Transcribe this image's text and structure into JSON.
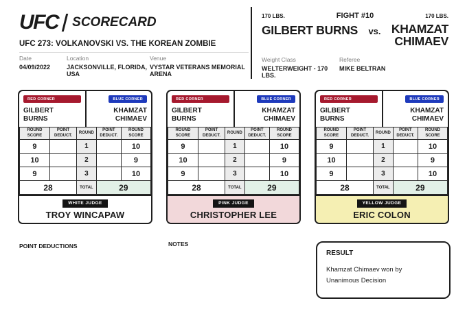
{
  "brand": {
    "ufc": "UFC",
    "scorecard": "SCORECARD"
  },
  "event": {
    "title": "UFC 273: VOLKANOVSKI VS. THE KOREAN ZOMBIE",
    "date_label": "Date",
    "date": "04/09/2022",
    "location_label": "Location",
    "location": "JACKSONVILLE, FLORIDA, USA",
    "venue_label": "Venue",
    "venue": "VYSTAR VETERANS MEMORIAL ARENA"
  },
  "fight": {
    "number": "FIGHT #10",
    "red_weight": "170 LBS.",
    "blue_weight": "170 LBS.",
    "red_fighter": "GILBERT BURNS",
    "vs": "vs.",
    "blue_fighter_first": "KHAMZAT",
    "blue_fighter_last": "CHIMAEV",
    "weight_class_label": "Weight Class",
    "weight_class": "WELTERWEIGHT - 170 LBS.",
    "referee_label": "Referee",
    "referee": "MIKE BELTRAN"
  },
  "card": {
    "red_corner": "RED CORNER",
    "blue_corner": "BLUE CORNER",
    "red_first": "GILBERT",
    "red_last": "BURNS",
    "blue_first": "KHAMZAT",
    "blue_last": "CHIMAEV",
    "headers": {
      "round_score": "ROUND SCORE",
      "point_deduct": "POINT DEDUCT.",
      "round": "ROUND"
    },
    "total_label": "TOTAL"
  },
  "judges": [
    {
      "badge": "WHITE JUDGE",
      "name": "TROY WINCAPAW",
      "judge_bg": "#ffffff",
      "rounds": [
        {
          "red_score": "9",
          "red_deduct": "",
          "round": "1",
          "blue_deduct": "",
          "blue_score": "10"
        },
        {
          "red_score": "10",
          "red_deduct": "",
          "round": "2",
          "blue_deduct": "",
          "blue_score": "9"
        },
        {
          "red_score": "9",
          "red_deduct": "",
          "round": "3",
          "blue_deduct": "",
          "blue_score": "10"
        }
      ],
      "red_total": "28",
      "blue_total": "29"
    },
    {
      "badge": "PINK JUDGE",
      "name": "CHRISTOPHER LEE",
      "judge_bg": "#f2d8da",
      "rounds": [
        {
          "red_score": "9",
          "red_deduct": "",
          "round": "1",
          "blue_deduct": "",
          "blue_score": "10"
        },
        {
          "red_score": "10",
          "red_deduct": "",
          "round": "2",
          "blue_deduct": "",
          "blue_score": "9"
        },
        {
          "red_score": "9",
          "red_deduct": "",
          "round": "3",
          "blue_deduct": "",
          "blue_score": "10"
        }
      ],
      "red_total": "28",
      "blue_total": "29"
    },
    {
      "badge": "YELLOW JUDGE",
      "name": "ERIC COLON",
      "judge_bg": "#f5efb3",
      "rounds": [
        {
          "red_score": "9",
          "red_deduct": "",
          "round": "1",
          "blue_deduct": "",
          "blue_score": "10"
        },
        {
          "red_score": "10",
          "red_deduct": "",
          "round": "2",
          "blue_deduct": "",
          "blue_score": "9"
        },
        {
          "red_score": "9",
          "red_deduct": "",
          "round": "3",
          "blue_deduct": "",
          "blue_score": "10"
        }
      ],
      "red_total": "28",
      "blue_total": "29"
    }
  ],
  "footer": {
    "point_deductions_label": "POINT DEDUCTIONS",
    "notes_label": "NOTES",
    "result_label": "RESULT",
    "result_text": "Khamzat Chimaev won by Unanimous Decision"
  },
  "colors": {
    "red_corner_bg": "#a6192e",
    "blue_corner_bg": "#1e3abc",
    "table_header_bg": "#ececec",
    "winner_total_bg": "#e2f0e7",
    "white_judge_bg": "#ffffff",
    "pink_judge_bg": "#f2d8da",
    "yellow_judge_bg": "#f5efb3",
    "ink": "#1b1b1b"
  }
}
